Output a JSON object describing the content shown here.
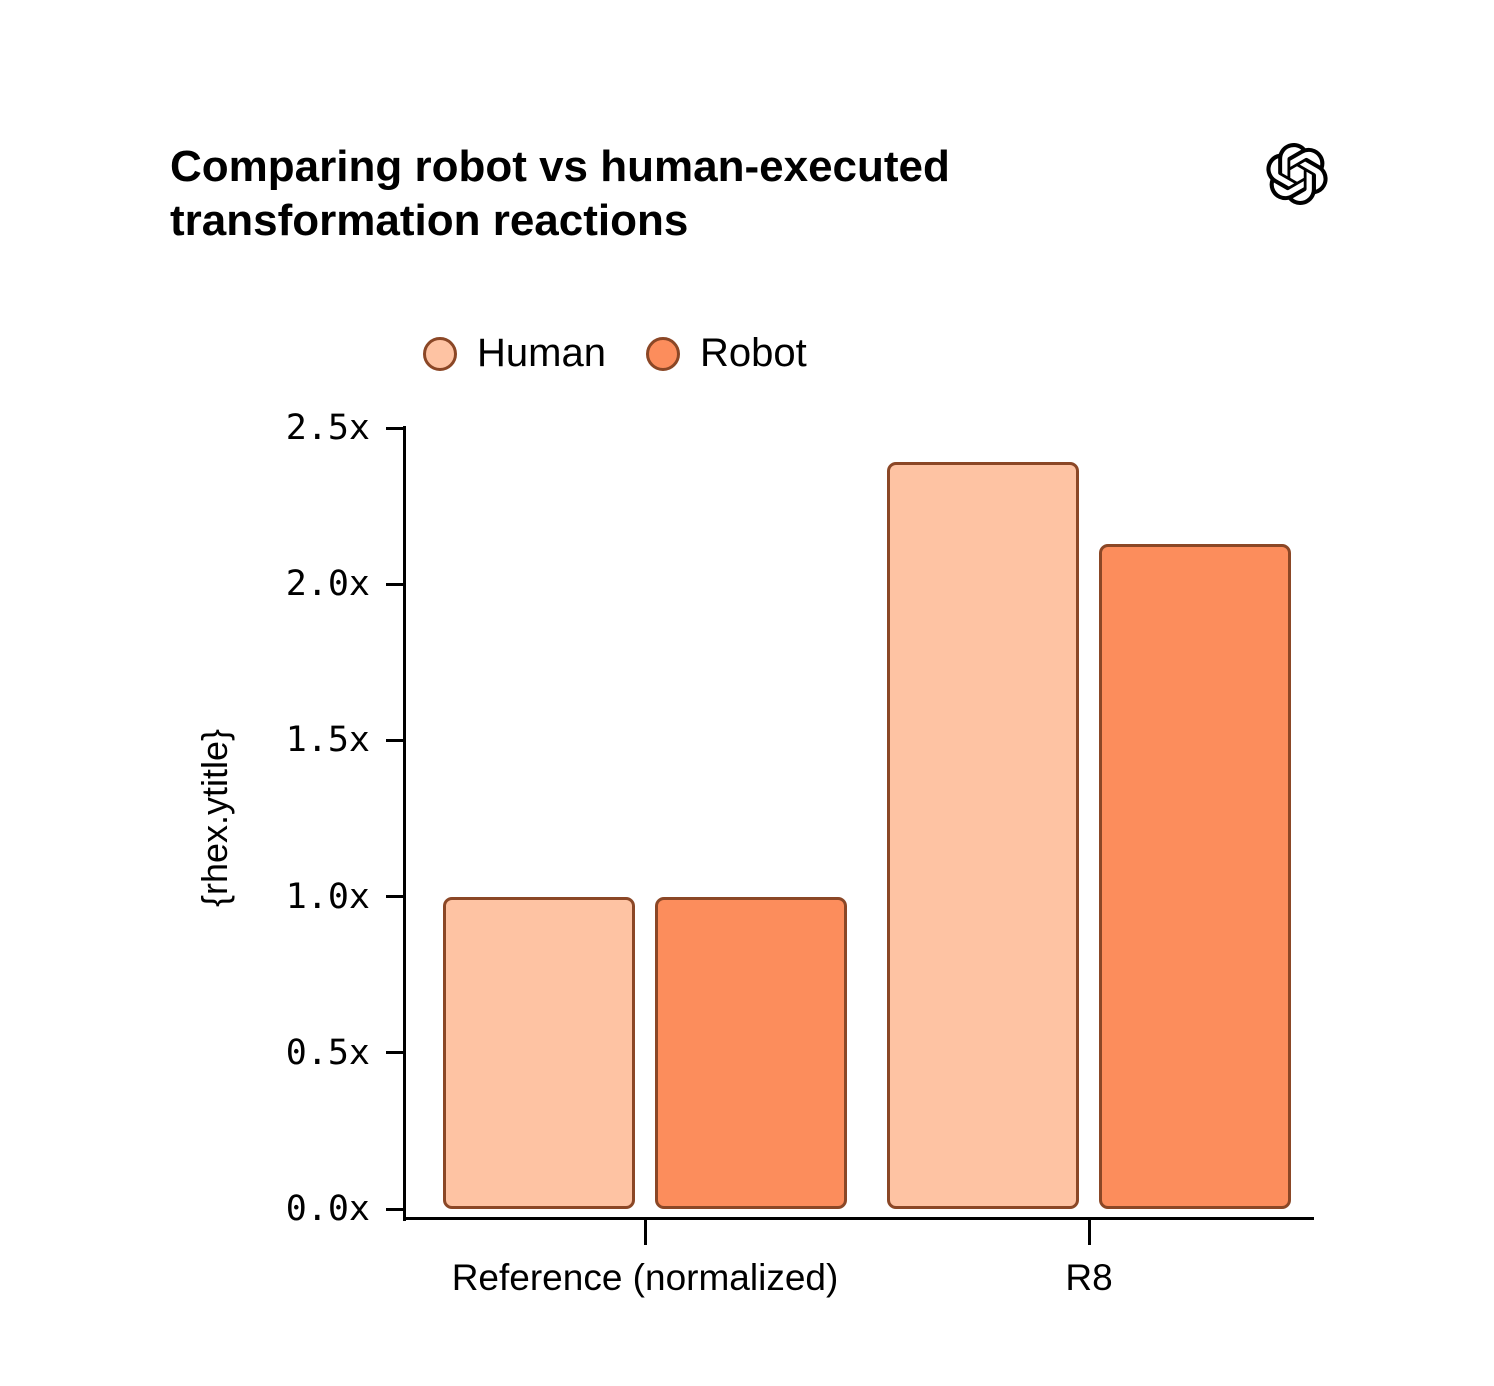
{
  "icons": {
    "logo": "openai-logo"
  },
  "chart_data": {
    "type": "bar",
    "title": "Comparing robot vs human-executed transformation reactions",
    "categories": [
      "Reference (normalized)",
      "R8"
    ],
    "series": [
      {
        "name": "Human",
        "values": [
          1.0,
          2.39
        ],
        "fill": "#fec3a3"
      },
      {
        "name": "Robot",
        "values": [
          1.0,
          2.13
        ],
        "fill": "#fc8d5c"
      }
    ],
    "bar_stroke": "#8b4726",
    "ylabel": "{rhex.ytitle}",
    "ylim": [
      0,
      2.5
    ],
    "y_ticks": [
      {
        "value": 0.0,
        "label": "0.0x"
      },
      {
        "value": 0.5,
        "label": "0.5x"
      },
      {
        "value": 1.0,
        "label": "1.0x"
      },
      {
        "value": 1.5,
        "label": "1.5x"
      },
      {
        "value": 2.0,
        "label": "2.0x"
      },
      {
        "value": 2.5,
        "label": "2.5x"
      }
    ],
    "legend_position": "top",
    "grid": false
  }
}
